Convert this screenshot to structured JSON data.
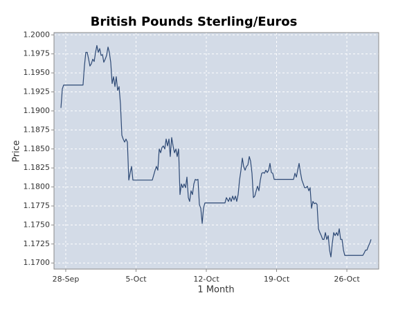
{
  "chart_data": {
    "type": "line",
    "title": "British Pounds Sterling/Euros",
    "x_label": "1 Month",
    "y_label": "Price",
    "color": "#2c4874",
    "grid": true,
    "xlim": [
      -1.17,
      31.17
    ],
    "ylim": [
      1.1692,
      1.2003
    ],
    "xticks": [
      {
        "value": 0,
        "label": "28-Sep"
      },
      {
        "value": 7,
        "label": "5-Oct"
      },
      {
        "value": 14,
        "label": "12-Oct"
      },
      {
        "value": 21,
        "label": "19-Oct"
      },
      {
        "value": 28,
        "label": "26-Oct"
      }
    ],
    "yticks": [
      {
        "value": 1.17,
        "label": "1.1700"
      },
      {
        "value": 1.1725,
        "label": "1.1725"
      },
      {
        "value": 1.175,
        "label": "1.1750"
      },
      {
        "value": 1.1775,
        "label": "1.1775"
      },
      {
        "value": 1.18,
        "label": "1.1800"
      },
      {
        "value": 1.1825,
        "label": "1.1825"
      },
      {
        "value": 1.185,
        "label": "1.1850"
      },
      {
        "value": 1.1875,
        "label": "1.1875"
      },
      {
        "value": 1.19,
        "label": "1.1900"
      },
      {
        "value": 1.1925,
        "label": "1.1925"
      },
      {
        "value": 1.195,
        "label": "1.1950"
      },
      {
        "value": 1.1975,
        "label": "1.1975"
      },
      {
        "value": 1.2,
        "label": "1.2000"
      }
    ],
    "x": [
      -0.48,
      -0.34,
      -0.21,
      1.72,
      1.86,
      2.0,
      2.14,
      2.28,
      2.41,
      2.55,
      2.69,
      2.83,
      2.97,
      3.1,
      3.24,
      3.38,
      3.52,
      3.66,
      3.79,
      3.93,
      4.07,
      4.21,
      4.34,
      4.48,
      4.62,
      4.76,
      4.9,
      5.03,
      5.17,
      5.31,
      5.45,
      5.59,
      5.72,
      5.86,
      6.0,
      6.14,
      6.28,
      6.41,
      6.55,
      6.69,
      8.62,
      8.9,
      9.03,
      9.17,
      9.31,
      9.45,
      9.59,
      9.72,
      9.86,
      10.0,
      10.14,
      10.28,
      10.41,
      10.55,
      10.69,
      10.83,
      10.97,
      11.1,
      11.24,
      11.38,
      11.52,
      11.66,
      11.79,
      11.93,
      12.07,
      12.21,
      12.34,
      12.48,
      12.62,
      12.76,
      12.9,
      13.03,
      13.17,
      13.31,
      13.45,
      13.59,
      13.72,
      13.86,
      15.86,
      16.0,
      16.21,
      16.34,
      16.48,
      16.62,
      16.76,
      16.9,
      17.03,
      17.17,
      17.31,
      17.45,
      17.59,
      17.72,
      17.86,
      18.0,
      18.14,
      18.28,
      18.41,
      18.55,
      18.69,
      18.83,
      18.97,
      19.1,
      19.24,
      19.38,
      19.52,
      19.66,
      19.79,
      19.93,
      20.07,
      20.21,
      20.34,
      20.48,
      20.62,
      20.76,
      22.69,
      22.83,
      22.97,
      23.1,
      23.24,
      23.38,
      23.52,
      23.66,
      23.79,
      23.93,
      24.07,
      24.21,
      24.34,
      24.48,
      24.62,
      24.76,
      24.9,
      25.03,
      25.17,
      25.31,
      25.45,
      25.59,
      25.72,
      25.86,
      26.0,
      26.14,
      26.28,
      26.41,
      26.55,
      26.69,
      26.83,
      26.97,
      27.1,
      27.24,
      27.38,
      27.52,
      27.66,
      27.79,
      29.59,
      29.72,
      29.86,
      30.0,
      30.14,
      30.28,
      30.41
    ],
    "values": [
      1.1904,
      1.1929,
      1.1934,
      1.1934,
      1.1959,
      1.1977,
      1.1977,
      1.1968,
      1.1959,
      1.1962,
      1.1968,
      1.1965,
      1.1977,
      1.1986,
      1.1977,
      1.1982,
      1.1973,
      1.1974,
      1.1964,
      1.1968,
      1.1973,
      1.1984,
      1.1977,
      1.1964,
      1.1936,
      1.1945,
      1.1932,
      1.1945,
      1.1927,
      1.1932,
      1.1909,
      1.1868,
      1.1863,
      1.1859,
      1.1863,
      1.1859,
      1.1809,
      1.1818,
      1.1827,
      1.1809,
      1.1809,
      1.1822,
      1.1827,
      1.1822,
      1.185,
      1.1845,
      1.1852,
      1.1854,
      1.185,
      1.1863,
      1.1854,
      1.1863,
      1.184,
      1.1865,
      1.1854,
      1.1845,
      1.185,
      1.184,
      1.185,
      1.179,
      1.1804,
      1.1799,
      1.1804,
      1.1799,
      1.1813,
      1.1786,
      1.1781,
      1.1795,
      1.179,
      1.1804,
      1.181,
      1.1809,
      1.181,
      1.1777,
      1.1772,
      1.1752,
      1.1772,
      1.1779,
      1.1779,
      1.1786,
      1.1781,
      1.1786,
      1.1781,
      1.1788,
      1.1783,
      1.1788,
      1.1781,
      1.179,
      1.1809,
      1.1822,
      1.1838,
      1.1827,
      1.1822,
      1.1827,
      1.1829,
      1.184,
      1.1834,
      1.1818,
      1.1786,
      1.1788,
      1.1795,
      1.1801,
      1.1795,
      1.1809,
      1.1818,
      1.1819,
      1.1818,
      1.1822,
      1.1819,
      1.1822,
      1.1831,
      1.1819,
      1.1818,
      1.181,
      1.181,
      1.1818,
      1.1813,
      1.1822,
      1.1831,
      1.1819,
      1.1809,
      1.1804,
      1.1799,
      1.1799,
      1.1801,
      1.1795,
      1.1799,
      1.1772,
      1.1781,
      1.1778,
      1.1779,
      1.1777,
      1.1745,
      1.174,
      1.1736,
      1.1731,
      1.1731,
      1.174,
      1.1731,
      1.1736,
      1.1717,
      1.1708,
      1.1726,
      1.174,
      1.1736,
      1.174,
      1.1736,
      1.1745,
      1.1731,
      1.1731,
      1.1717,
      1.171,
      1.171,
      1.1713,
      1.1717,
      1.1717,
      1.1722,
      1.1726,
      1.1731
    ]
  }
}
